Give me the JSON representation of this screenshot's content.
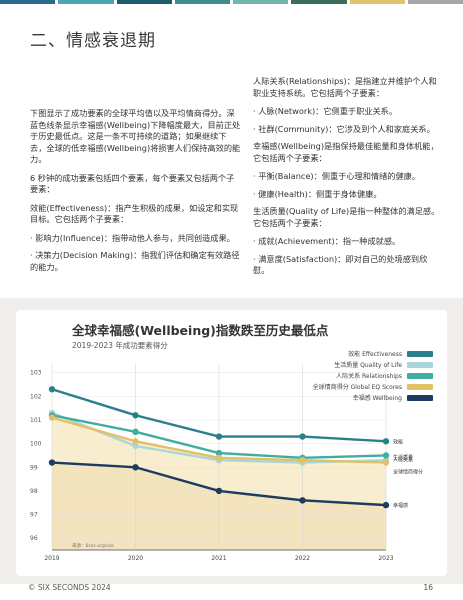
{
  "topbar": {
    "colors": [
      "#2a6a8f",
      "#4aa6b5",
      "#1f5c6e",
      "#3d8f8c",
      "#6fb7a8",
      "#3b6e5a",
      "#e0c46c",
      "#a7a7a7"
    ]
  },
  "section": {
    "title": "二、情感衰退期"
  },
  "left_col": {
    "p1": "下图显示了成功要素的全球平均值以及平均情商得分。深蓝色线条显示幸福感(Wellbeing)下降幅度最大，目前正处于历史最低点。这是一条不可持续的道路；如果继续下去，全球的低幸福感(Wellbeing)将损害人们保持高效的能力。",
    "p2": "6 秒钟的成功要素包括四个要素，每个要素又包括两个子要素：",
    "p3": "效能(Effectiveness)：指产生积极的成果，如设定和实现目标。它包括两个子要素：",
    "b1": "· 影响力(Influence)：指带动他人参与，共同创造成果。",
    "b2": "· 决策力(Decision Making)：指我们评估和确定有效路径的能力。"
  },
  "right_col": {
    "p1": "人际关系(Relationships)：是指建立并维护个人和职业支持系统。它包括两个子要素：",
    "b1": "· 人脉(Network)：它侧重于职业关系。",
    "b2": "· 社群(Community)：它涉及到个人和家庭关系。",
    "p2": "幸福感(Wellbeing)是指保持最佳能量和身体机能，它包括两个子要素：",
    "b3": "· 平衡(Balance)：侧重于心理和情绪的健康。",
    "b4": "· 健康(Health)：侧重于身体健康。",
    "p3": "生活质量(Quality of Life)是指一种整体的满足感。它包括两个子要素：",
    "b5": "· 成就(Achievement)：指一种成就感。",
    "b6": "· 满意度(Satisfaction)：即对自己的处境感到欣慰。"
  },
  "chart_data": {
    "type": "line",
    "title": "全球幸福感(Wellbeing)指数跌至历史最低点",
    "subtitle": "2019-2023 年成功要素得分",
    "x": [
      "2019",
      "2020",
      "2021",
      "2022",
      "2023"
    ],
    "ylim": [
      95.5,
      103.2
    ],
    "yticks": [
      96,
      97,
      98,
      99,
      100,
      101,
      102,
      103
    ],
    "ytick_labels": [
      "96",
      "97",
      "98",
      "99",
      "100",
      "101",
      "102",
      "103"
    ],
    "source_note": "来源：6sec.org/sok",
    "series": [
      {
        "name": "效能 Effectiveness",
        "end_label": "效能",
        "color": "#2a7f8a",
        "values": [
          102.3,
          101.2,
          100.3,
          100.3,
          100.1
        ]
      },
      {
        "name": "生活质量 Quality of Life",
        "end_label": "生活质量",
        "color": "#a9d6db",
        "values": [
          101.3,
          99.9,
          99.3,
          99.2,
          99.3
        ]
      },
      {
        "name": "人际关系 Relationships",
        "end_label": "人际关系",
        "color": "#3fae9f",
        "values": [
          101.2,
          100.5,
          99.6,
          99.4,
          99.5
        ]
      },
      {
        "name": "全球情商得分 Global EQ Scores",
        "end_label": "全球情商得分",
        "color": "#e2c066",
        "values": [
          101.1,
          100.1,
          99.4,
          99.3,
          99.2
        ]
      },
      {
        "name": "幸福感 Wellbeing",
        "end_label": "幸福感",
        "color": "#1d3b5e",
        "values": [
          99.2,
          99.0,
          98.0,
          97.6,
          97.4
        ]
      }
    ]
  },
  "footer": {
    "left": "© SIX SECONDS 2024",
    "right": "16"
  }
}
